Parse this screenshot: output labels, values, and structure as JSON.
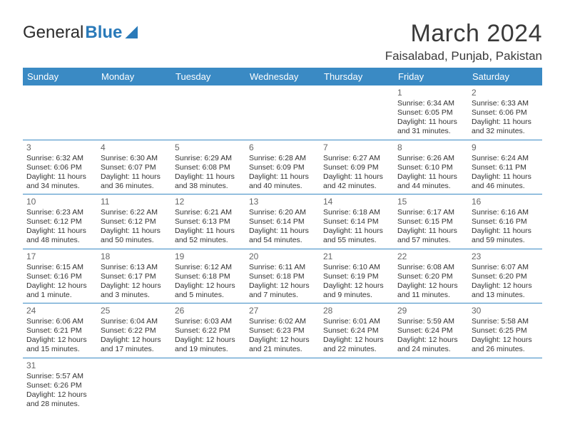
{
  "logo": {
    "text1": "General",
    "text2": "Blue"
  },
  "title": "March 2024",
  "location": "Faisalabad, Punjab, Pakistan",
  "colors": {
    "header_bg": "#3a8ac4",
    "header_fg": "#ffffff",
    "accent": "#2a7ab9",
    "text": "#333333",
    "daynum": "#666666",
    "rule": "#3a8ac4",
    "page_bg": "#ffffff"
  },
  "typography": {
    "title_fontsize": 34,
    "location_fontsize": 17,
    "dayheader_fontsize": 13,
    "cell_fontsize": 10.5,
    "daynum_fontsize": 12
  },
  "weekdays": [
    "Sunday",
    "Monday",
    "Tuesday",
    "Wednesday",
    "Thursday",
    "Friday",
    "Saturday"
  ],
  "weeks": [
    [
      null,
      null,
      null,
      null,
      null,
      {
        "d": "1",
        "sr": "Sunrise: 6:34 AM",
        "ss": "Sunset: 6:05 PM",
        "dl1": "Daylight: 11 hours",
        "dl2": "and 31 minutes."
      },
      {
        "d": "2",
        "sr": "Sunrise: 6:33 AM",
        "ss": "Sunset: 6:06 PM",
        "dl1": "Daylight: 11 hours",
        "dl2": "and 32 minutes."
      }
    ],
    [
      {
        "d": "3",
        "sr": "Sunrise: 6:32 AM",
        "ss": "Sunset: 6:06 PM",
        "dl1": "Daylight: 11 hours",
        "dl2": "and 34 minutes."
      },
      {
        "d": "4",
        "sr": "Sunrise: 6:30 AM",
        "ss": "Sunset: 6:07 PM",
        "dl1": "Daylight: 11 hours",
        "dl2": "and 36 minutes."
      },
      {
        "d": "5",
        "sr": "Sunrise: 6:29 AM",
        "ss": "Sunset: 6:08 PM",
        "dl1": "Daylight: 11 hours",
        "dl2": "and 38 minutes."
      },
      {
        "d": "6",
        "sr": "Sunrise: 6:28 AM",
        "ss": "Sunset: 6:09 PM",
        "dl1": "Daylight: 11 hours",
        "dl2": "and 40 minutes."
      },
      {
        "d": "7",
        "sr": "Sunrise: 6:27 AM",
        "ss": "Sunset: 6:09 PM",
        "dl1": "Daylight: 11 hours",
        "dl2": "and 42 minutes."
      },
      {
        "d": "8",
        "sr": "Sunrise: 6:26 AM",
        "ss": "Sunset: 6:10 PM",
        "dl1": "Daylight: 11 hours",
        "dl2": "and 44 minutes."
      },
      {
        "d": "9",
        "sr": "Sunrise: 6:24 AM",
        "ss": "Sunset: 6:11 PM",
        "dl1": "Daylight: 11 hours",
        "dl2": "and 46 minutes."
      }
    ],
    [
      {
        "d": "10",
        "sr": "Sunrise: 6:23 AM",
        "ss": "Sunset: 6:12 PM",
        "dl1": "Daylight: 11 hours",
        "dl2": "and 48 minutes."
      },
      {
        "d": "11",
        "sr": "Sunrise: 6:22 AM",
        "ss": "Sunset: 6:12 PM",
        "dl1": "Daylight: 11 hours",
        "dl2": "and 50 minutes."
      },
      {
        "d": "12",
        "sr": "Sunrise: 6:21 AM",
        "ss": "Sunset: 6:13 PM",
        "dl1": "Daylight: 11 hours",
        "dl2": "and 52 minutes."
      },
      {
        "d": "13",
        "sr": "Sunrise: 6:20 AM",
        "ss": "Sunset: 6:14 PM",
        "dl1": "Daylight: 11 hours",
        "dl2": "and 54 minutes."
      },
      {
        "d": "14",
        "sr": "Sunrise: 6:18 AM",
        "ss": "Sunset: 6:14 PM",
        "dl1": "Daylight: 11 hours",
        "dl2": "and 55 minutes."
      },
      {
        "d": "15",
        "sr": "Sunrise: 6:17 AM",
        "ss": "Sunset: 6:15 PM",
        "dl1": "Daylight: 11 hours",
        "dl2": "and 57 minutes."
      },
      {
        "d": "16",
        "sr": "Sunrise: 6:16 AM",
        "ss": "Sunset: 6:16 PM",
        "dl1": "Daylight: 11 hours",
        "dl2": "and 59 minutes."
      }
    ],
    [
      {
        "d": "17",
        "sr": "Sunrise: 6:15 AM",
        "ss": "Sunset: 6:16 PM",
        "dl1": "Daylight: 12 hours",
        "dl2": "and 1 minute."
      },
      {
        "d": "18",
        "sr": "Sunrise: 6:13 AM",
        "ss": "Sunset: 6:17 PM",
        "dl1": "Daylight: 12 hours",
        "dl2": "and 3 minutes."
      },
      {
        "d": "19",
        "sr": "Sunrise: 6:12 AM",
        "ss": "Sunset: 6:18 PM",
        "dl1": "Daylight: 12 hours",
        "dl2": "and 5 minutes."
      },
      {
        "d": "20",
        "sr": "Sunrise: 6:11 AM",
        "ss": "Sunset: 6:18 PM",
        "dl1": "Daylight: 12 hours",
        "dl2": "and 7 minutes."
      },
      {
        "d": "21",
        "sr": "Sunrise: 6:10 AM",
        "ss": "Sunset: 6:19 PM",
        "dl1": "Daylight: 12 hours",
        "dl2": "and 9 minutes."
      },
      {
        "d": "22",
        "sr": "Sunrise: 6:08 AM",
        "ss": "Sunset: 6:20 PM",
        "dl1": "Daylight: 12 hours",
        "dl2": "and 11 minutes."
      },
      {
        "d": "23",
        "sr": "Sunrise: 6:07 AM",
        "ss": "Sunset: 6:20 PM",
        "dl1": "Daylight: 12 hours",
        "dl2": "and 13 minutes."
      }
    ],
    [
      {
        "d": "24",
        "sr": "Sunrise: 6:06 AM",
        "ss": "Sunset: 6:21 PM",
        "dl1": "Daylight: 12 hours",
        "dl2": "and 15 minutes."
      },
      {
        "d": "25",
        "sr": "Sunrise: 6:04 AM",
        "ss": "Sunset: 6:22 PM",
        "dl1": "Daylight: 12 hours",
        "dl2": "and 17 minutes."
      },
      {
        "d": "26",
        "sr": "Sunrise: 6:03 AM",
        "ss": "Sunset: 6:22 PM",
        "dl1": "Daylight: 12 hours",
        "dl2": "and 19 minutes."
      },
      {
        "d": "27",
        "sr": "Sunrise: 6:02 AM",
        "ss": "Sunset: 6:23 PM",
        "dl1": "Daylight: 12 hours",
        "dl2": "and 21 minutes."
      },
      {
        "d": "28",
        "sr": "Sunrise: 6:01 AM",
        "ss": "Sunset: 6:24 PM",
        "dl1": "Daylight: 12 hours",
        "dl2": "and 22 minutes."
      },
      {
        "d": "29",
        "sr": "Sunrise: 5:59 AM",
        "ss": "Sunset: 6:24 PM",
        "dl1": "Daylight: 12 hours",
        "dl2": "and 24 minutes."
      },
      {
        "d": "30",
        "sr": "Sunrise: 5:58 AM",
        "ss": "Sunset: 6:25 PM",
        "dl1": "Daylight: 12 hours",
        "dl2": "and 26 minutes."
      }
    ],
    [
      {
        "d": "31",
        "sr": "Sunrise: 5:57 AM",
        "ss": "Sunset: 6:26 PM",
        "dl1": "Daylight: 12 hours",
        "dl2": "and 28 minutes."
      },
      null,
      null,
      null,
      null,
      null,
      null
    ]
  ]
}
